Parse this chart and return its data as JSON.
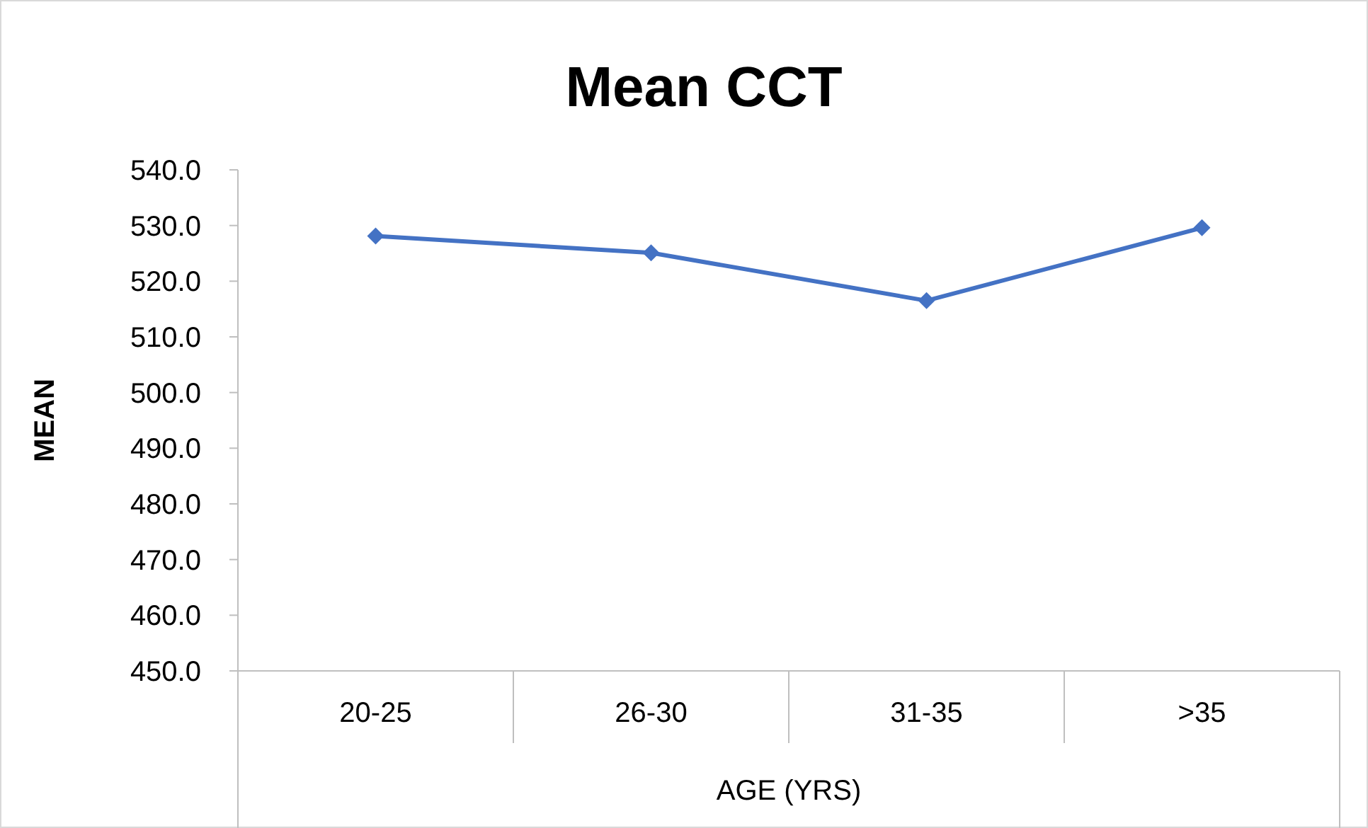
{
  "chart_data": {
    "type": "line",
    "title": "Mean CCT",
    "xlabel": "AGE (YRS)",
    "ylabel": "MEAN",
    "categories": [
      "20-25",
      "26-30",
      "31-35",
      ">35"
    ],
    "series": [
      {
        "color": "#4472c4",
        "values": [
          528.1,
          525.1,
          516.5,
          529.6
        ]
      }
    ],
    "ylim": [
      450,
      540
    ],
    "yticks": [
      {
        "value": 450,
        "label": "450.0"
      },
      {
        "value": 460,
        "label": "460.0"
      },
      {
        "value": 470,
        "label": "470.0"
      },
      {
        "value": 480,
        "label": "480.0"
      },
      {
        "value": 490,
        "label": "490.0"
      },
      {
        "value": 500,
        "label": "500.0"
      },
      {
        "value": 510,
        "label": "510.0"
      },
      {
        "value": 520,
        "label": "520.0"
      },
      {
        "value": 530,
        "label": "530.0"
      },
      {
        "value": 540,
        "label": "540.0"
      }
    ],
    "grid": false,
    "marker": "diamond",
    "line_style": "solid"
  }
}
